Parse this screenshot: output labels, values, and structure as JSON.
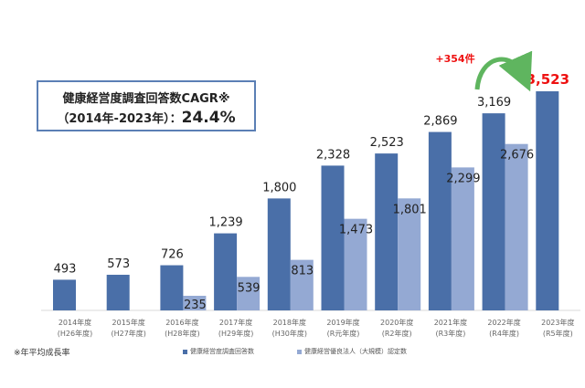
{
  "chart_data": {
    "type": "bar",
    "title": "",
    "categories": [
      "2014年度",
      "2015年度",
      "2016年度",
      "2017年度",
      "2018年度",
      "2019年度",
      "2020年度",
      "2021年度",
      "2022年度",
      "2023年度"
    ],
    "subcategories": [
      "(H26年度)",
      "(H27年度)",
      "(H28年度)",
      "(H29年度)",
      "(H30年度)",
      "(R元年度)",
      "(R2年度)",
      "(R3年度)",
      "(R4年度)",
      "(R5年度)"
    ],
    "series": [
      {
        "name": "健康経営度調査回答数",
        "color": "#4a6fa8",
        "values": [
          493,
          573,
          726,
          1239,
          1800,
          2328,
          2523,
          2869,
          3169,
          3523
        ],
        "labels": [
          "493",
          "573",
          "726",
          "1,239",
          "1,800",
          "2,328",
          "2,523",
          "2,869",
          "3,169",
          "3,523"
        ]
      },
      {
        "name": "健康経営優良法人（大規模）認定数",
        "color": "#94a9d3",
        "values": [
          null,
          null,
          235,
          539,
          813,
          1473,
          1801,
          2299,
          2676,
          null
        ],
        "labels": [
          "",
          "",
          "235",
          "539",
          "813",
          "1,473",
          "1,801",
          "2,299",
          "2,676",
          ""
        ]
      }
    ],
    "ylim": [
      0,
      3600
    ],
    "annotation": "+354件",
    "highlight_color": "#ee1111"
  },
  "cagr_box": {
    "line1": "健康経営度調査回答数CAGR※",
    "line2": "（2014年-2023年）：",
    "value": "24.4%"
  },
  "footnote": "※年平均成長率"
}
